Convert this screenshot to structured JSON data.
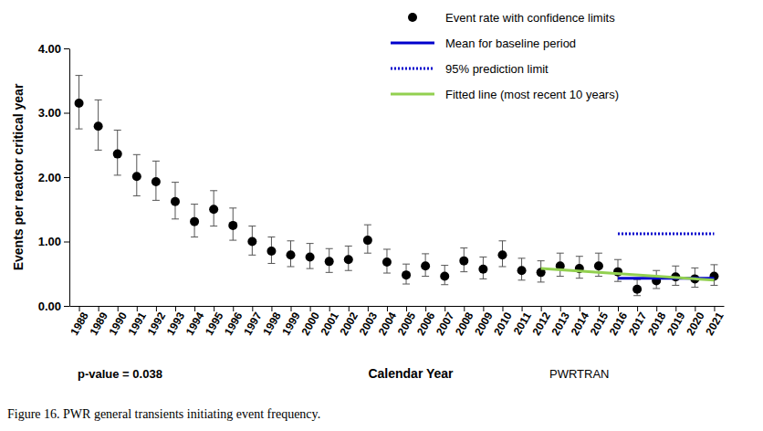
{
  "chart_data": {
    "type": "scatter",
    "x_label": "Calendar Year",
    "y_label": "Events per reactor critical year",
    "caption": "Figure 16. PWR general transients initiating event frequency.",
    "annotations": [
      "p-value = 0.038",
      "PWRTRAN"
    ],
    "legend": "top",
    "xlim": [
      1987.5,
      2021.5
    ],
    "xticks": [
      1988,
      1989,
      1990,
      1991,
      1992,
      1993,
      1994,
      1995,
      1996,
      1997,
      1998,
      1999,
      2000,
      2001,
      2002,
      2003,
      2004,
      2005,
      2006,
      2007,
      2008,
      2009,
      2010,
      2011,
      2012,
      2013,
      2014,
      2015,
      2016,
      2017,
      2018,
      2019,
      2020,
      2021
    ],
    "ylim": [
      0,
      4
    ],
    "yticks": [
      {
        "value": 0,
        "label": "0.00"
      },
      {
        "value": 1,
        "label": "1.00"
      },
      {
        "value": 2,
        "label": "2.00"
      },
      {
        "value": 3,
        "label": "3.00"
      },
      {
        "value": 4,
        "label": "4.00"
      }
    ],
    "series": [
      {
        "name": "Event rate with confidence limits",
        "type": "scatter",
        "marker": "circle",
        "color": "#000000",
        "x": [
          1988,
          1989,
          1990,
          1991,
          1992,
          1993,
          1994,
          1995,
          1996,
          1997,
          1998,
          1999,
          2000,
          2001,
          2002,
          2003,
          2004,
          2005,
          2006,
          2007,
          2008,
          2009,
          2010,
          2011,
          2012,
          2013,
          2014,
          2015,
          2016,
          2017,
          2018,
          2019,
          2020,
          2021
        ],
        "values": [
          3.15,
          2.79,
          2.36,
          2.01,
          1.93,
          1.62,
          1.31,
          1.5,
          1.25,
          1.0,
          0.85,
          0.79,
          0.76,
          0.69,
          0.72,
          1.02,
          0.68,
          0.48,
          0.62,
          0.46,
          0.7,
          0.57,
          0.79,
          0.55,
          0.52,
          0.62,
          0.58,
          0.62,
          0.53,
          0.26,
          0.39,
          0.45,
          0.42,
          0.46
        ],
        "lower": [
          2.75,
          2.42,
          2.03,
          1.71,
          1.64,
          1.35,
          1.07,
          1.24,
          1.02,
          0.79,
          0.66,
          0.61,
          0.58,
          0.52,
          0.55,
          0.82,
          0.51,
          0.34,
          0.46,
          0.33,
          0.53,
          0.42,
          0.61,
          0.4,
          0.37,
          0.46,
          0.43,
          0.46,
          0.38,
          0.16,
          0.27,
          0.32,
          0.29,
          0.32
        ],
        "upper": [
          3.58,
          3.2,
          2.73,
          2.35,
          2.25,
          1.92,
          1.58,
          1.79,
          1.52,
          1.24,
          1.07,
          1.01,
          0.97,
          0.89,
          0.93,
          1.26,
          0.88,
          0.65,
          0.81,
          0.63,
          0.9,
          0.76,
          1.01,
          0.74,
          0.7,
          0.82,
          0.77,
          0.82,
          0.72,
          0.41,
          0.55,
          0.62,
          0.59,
          0.64
        ]
      },
      {
        "name": "Mean for baseline period",
        "type": "line",
        "line_style": "solid",
        "color": "#0000cc",
        "x": [
          2016,
          2021
        ],
        "values": [
          0.43,
          0.43
        ]
      },
      {
        "name": "95% prediction limit",
        "type": "line",
        "line_style": "dotted",
        "color": "#0000cc",
        "x": [
          2016,
          2021
        ],
        "values": [
          1.12,
          1.12
        ]
      },
      {
        "name": "Fitted line (most recent 10 years)",
        "type": "line",
        "line_style": "solid",
        "color": "#92d050",
        "x": [
          2012,
          2021
        ],
        "values": [
          0.58,
          0.4
        ]
      }
    ]
  }
}
